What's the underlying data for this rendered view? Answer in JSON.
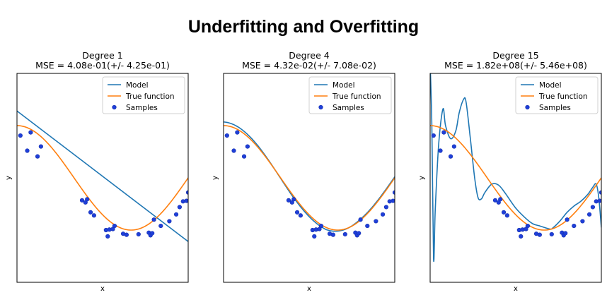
{
  "title": "Underfitting and Overfitting",
  "colors": {
    "model": "#1f77b4",
    "true_function": "#ff7f0e",
    "samples": "#1f3fd8"
  },
  "chart_data": [
    {
      "type": "line",
      "title": "Degree 1",
      "subtitle": "MSE = 4.08e-01(+/- 4.25e-01)",
      "xlabel": "x",
      "ylabel": "y",
      "xlim": [
        0,
        1
      ],
      "ylim": [
        -2,
        2
      ],
      "legend": {
        "position": "top-right",
        "entries": [
          "Model",
          "True function",
          "Samples"
        ]
      },
      "model": {
        "type": "linear",
        "coefficients": [
          1.28,
          -2.5
        ]
      }
    },
    {
      "type": "line",
      "title": "Degree 4",
      "subtitle": "MSE = 4.32e-02(+/- 7.08e-02)",
      "xlabel": "x",
      "ylabel": "y",
      "xlim": [
        0,
        1
      ],
      "ylim": [
        -2,
        2
      ],
      "legend": {
        "position": "top-right",
        "entries": [
          "Model",
          "True function",
          "Samples"
        ]
      },
      "model": {
        "type": "true_plus_offset",
        "points": [
          [
            0.0,
            0.07
          ],
          [
            0.2,
            0.03
          ],
          [
            0.4,
            -0.03
          ],
          [
            0.6,
            -0.04
          ],
          [
            0.8,
            0.02
          ],
          [
            1.0,
            0.02
          ]
        ]
      }
    },
    {
      "type": "line",
      "title": "Degree 15",
      "subtitle": "MSE = 1.82e+08(+/- 5.46e+08)",
      "xlabel": "x",
      "ylabel": "y",
      "xlim": [
        0,
        1
      ],
      "ylim": [
        -2,
        2
      ],
      "legend": {
        "position": "top-right",
        "entries": [
          "Model",
          "True function",
          "Samples"
        ]
      },
      "model": {
        "type": "points",
        "points": [
          [
            0.0,
            2.2
          ],
          [
            0.01,
            1.0
          ],
          [
            0.02,
            -1.55
          ],
          [
            0.03,
            -0.6
          ],
          [
            0.05,
            0.65
          ],
          [
            0.075,
            1.32
          ],
          [
            0.09,
            1.0
          ],
          [
            0.12,
            0.75
          ],
          [
            0.15,
            0.9
          ],
          [
            0.17,
            1.25
          ],
          [
            0.195,
            1.5
          ],
          [
            0.21,
            1.45
          ],
          [
            0.235,
            0.75
          ],
          [
            0.26,
            0.0
          ],
          [
            0.28,
            -0.38
          ],
          [
            0.3,
            -0.4
          ],
          [
            0.32,
            -0.28
          ],
          [
            0.36,
            -0.12
          ],
          [
            0.4,
            -0.14
          ],
          [
            0.44,
            -0.3
          ],
          [
            0.5,
            -0.58
          ],
          [
            0.56,
            -0.78
          ],
          [
            0.6,
            -0.88
          ],
          [
            0.64,
            -0.92
          ],
          [
            0.7,
            -0.98
          ],
          [
            0.72,
            -0.95
          ],
          [
            0.76,
            -0.82
          ],
          [
            0.8,
            -0.66
          ],
          [
            0.84,
            -0.54
          ],
          [
            0.88,
            -0.45
          ],
          [
            0.92,
            -0.32
          ],
          [
            0.95,
            -0.18
          ],
          [
            0.97,
            -0.12
          ],
          [
            0.985,
            -0.38
          ],
          [
            1.0,
            -0.95
          ]
        ]
      }
    }
  ],
  "samples": [
    [
      0.02,
      0.81
    ],
    [
      0.06,
      0.52
    ],
    [
      0.08,
      0.87
    ],
    [
      0.12,
      0.41
    ],
    [
      0.14,
      0.6
    ],
    [
      0.38,
      -0.43
    ],
    [
      0.4,
      -0.47
    ],
    [
      0.41,
      -0.41
    ],
    [
      0.43,
      -0.66
    ],
    [
      0.45,
      -0.72
    ],
    [
      0.52,
      -1.0
    ],
    [
      0.53,
      -1.12
    ],
    [
      0.54,
      -0.99
    ],
    [
      0.56,
      -0.98
    ],
    [
      0.57,
      -0.92
    ],
    [
      0.62,
      -1.07
    ],
    [
      0.64,
      -1.09
    ],
    [
      0.71,
      -1.08
    ],
    [
      0.77,
      -1.05
    ],
    [
      0.78,
      -1.1
    ],
    [
      0.79,
      -1.06
    ],
    [
      0.8,
      -0.8
    ],
    [
      0.84,
      -0.92
    ],
    [
      0.89,
      -0.83
    ],
    [
      0.93,
      -0.7
    ],
    [
      0.95,
      -0.56
    ],
    [
      0.97,
      -0.45
    ],
    [
      0.99,
      -0.44
    ],
    [
      1.0,
      -0.28
    ]
  ]
}
